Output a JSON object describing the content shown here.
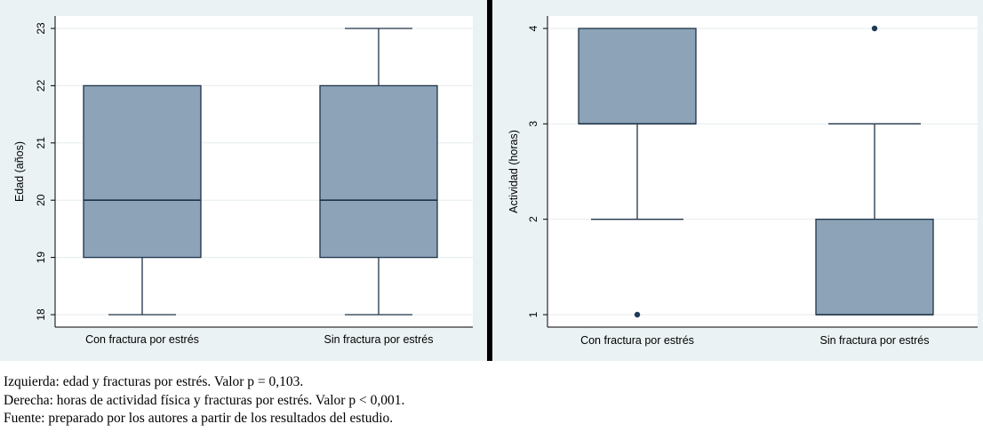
{
  "chart_data": [
    {
      "type": "box",
      "ylabel": "Edad (años)",
      "ylim": [
        17.8,
        23.2
      ],
      "yticks": [
        18,
        19,
        20,
        21,
        22,
        23
      ],
      "grid": true,
      "categories": [
        "Con fractura por estrés",
        "Sin fractura por estrés"
      ],
      "boxes": [
        {
          "category": "Con fractura por estrés",
          "whisker_low": 18,
          "q1": 19,
          "median": 20,
          "q3": 22,
          "whisker_high": 22,
          "outliers": []
        },
        {
          "category": "Sin fractura por estrés",
          "whisker_low": 18,
          "q1": 19,
          "median": 20,
          "q3": 22,
          "whisker_high": 23,
          "outliers": []
        }
      ]
    },
    {
      "type": "box",
      "ylabel": "Actividad (horas)",
      "ylim": [
        0.9,
        4.1
      ],
      "yticks": [
        1,
        2,
        3,
        4
      ],
      "grid": true,
      "categories": [
        "Con fractura por estrés",
        "Sin fractura por estrés"
      ],
      "boxes": [
        {
          "category": "Con fractura por estrés",
          "whisker_low": 2,
          "q1": 3,
          "median": 3,
          "q3": 4,
          "whisker_high": 4,
          "outliers": [
            1
          ]
        },
        {
          "category": "Sin fractura por estrés",
          "whisker_low": 1,
          "q1": 1,
          "median": 1,
          "q3": 2,
          "whisker_high": 3,
          "outliers": [
            4
          ]
        }
      ]
    }
  ],
  "captions": {
    "left": "Izquierda: edad y fracturas por estrés. Valor p = 0,103.",
    "right": "Derecha: horas de actividad física y fracturas por estrés. Valor p < 0,001.",
    "source": "Fuente: preparado por los autores a partir de los resultados del estudio."
  },
  "colors": {
    "box_fill": "#8ca3b8",
    "box_line": "#1f3347",
    "panel_background": "#eaf2f3",
    "separator": "#000000"
  }
}
